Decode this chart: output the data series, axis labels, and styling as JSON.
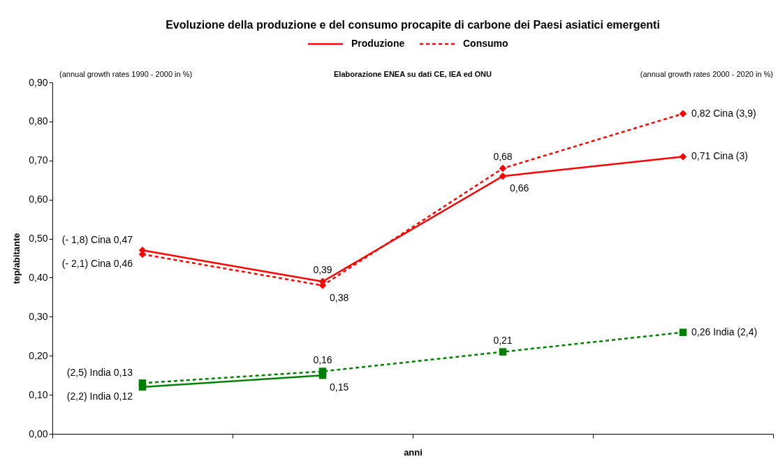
{
  "chart_data": {
    "type": "line",
    "title": "Evoluzione della produzione e del consumo procapite di carbone dei Paesi asiatici emergenti",
    "xlabel": "anni",
    "ylabel": "tep/abitante",
    "annotations": [
      "(annual growth rates 1990 - 2000  in %)",
      "Elaborazione ENEA su dati CE, IEA ed ONU",
      "(annual growth rates 2000 - 2020  in %)"
    ],
    "categories": [
      null,
      null,
      null,
      null
    ],
    "series": [
      {
        "name": "Produzione",
        "color": "#ff0000",
        "line_style": "solid",
        "marker": "diamond",
        "values": [
          0.47,
          0.39,
          0.66,
          0.71
        ],
        "value_labels": [
          "(- 1,8)  Cina  0,47",
          "0,39",
          "0,66",
          "0,71  Cina (3)"
        ]
      },
      {
        "name": "Consumo",
        "color": "#ff0000",
        "line_style": "dashed",
        "marker": "diamond",
        "values": [
          0.46,
          0.38,
          0.68,
          0.82
        ],
        "value_labels": [
          "(- 2,1)  Cina  0,46",
          "0,38",
          "0,68",
          "0,82  Cina (3,9)"
        ]
      },
      {
        "color": "#008000",
        "line_style": "solid",
        "marker": "square",
        "values": [
          0.12,
          0.15,
          null,
          null
        ],
        "value_labels": [
          "(2,2)  India  0,12",
          "0,15",
          null,
          null
        ]
      },
      {
        "color": "#008000",
        "line_style": "dashed",
        "marker": "square",
        "values": [
          0.13,
          0.16,
          0.21,
          0.26
        ],
        "value_labels": [
          "(2,5)  India  0,13",
          "0,16",
          "0,21",
          "0,26  India (2,4)"
        ]
      }
    ],
    "ylim": [
      0,
      0.9
    ],
    "yticks": [
      {
        "value": 0,
        "label": "0,00"
      },
      {
        "value": 0.1,
        "label": "0,10"
      },
      {
        "value": 0.2,
        "label": "0,20"
      },
      {
        "value": 0.3,
        "label": "0,30"
      },
      {
        "value": 0.4,
        "label": "0,40"
      },
      {
        "value": 0.5,
        "label": "0,50"
      },
      {
        "value": 0.6,
        "label": "0,60"
      },
      {
        "value": 0.7,
        "label": "0,70"
      },
      {
        "value": 0.8,
        "label": "0,80"
      },
      {
        "value": 0.9,
        "label": "0,90"
      }
    ],
    "grid": false,
    "legend": "top"
  }
}
